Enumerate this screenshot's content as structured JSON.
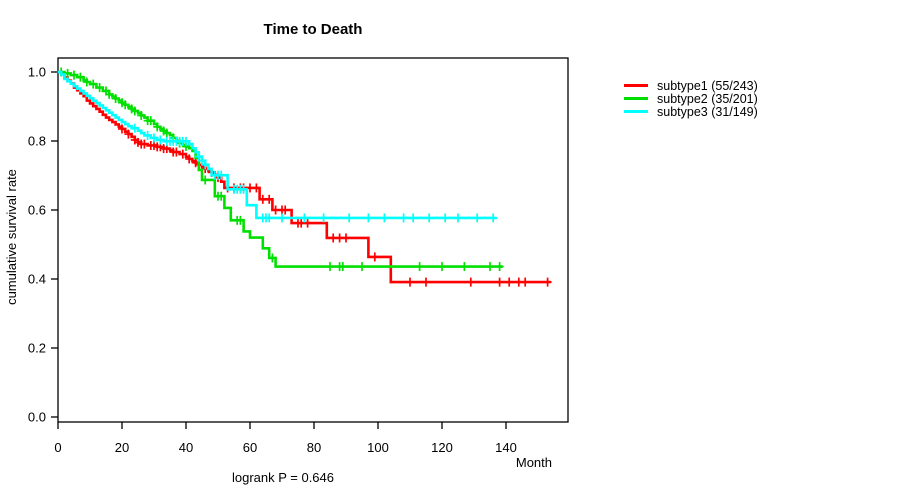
{
  "chart_data": {
    "type": "line",
    "subtype": "kaplan-meier-step-survival",
    "title": "Time to Death",
    "xlabel": "Month",
    "ylabel": "cumulative survival rate",
    "footnote": "logrank P = 0.646",
    "xlim": [
      0,
      160
    ],
    "ylim": [
      0,
      1
    ],
    "xticks": [
      0,
      20,
      40,
      60,
      80,
      100,
      120,
      140
    ],
    "yticks": [
      "0.0",
      "0.2",
      "0.4",
      "0.6",
      "0.8",
      "1.0"
    ],
    "grid": false,
    "legend_position": "right",
    "axis_color": "#000000",
    "series": [
      {
        "name": "subtype1 (55/243)",
        "color": "#FF0000",
        "end": 154,
        "steps": [
          [
            0,
            1.0
          ],
          [
            1,
            0.996
          ],
          [
            2,
            0.984
          ],
          [
            3,
            0.975
          ],
          [
            4,
            0.967
          ],
          [
            5,
            0.955
          ],
          [
            6,
            0.947
          ],
          [
            7,
            0.938
          ],
          [
            8,
            0.93
          ],
          [
            9,
            0.917
          ],
          [
            10,
            0.909
          ],
          [
            11,
            0.901
          ],
          [
            12,
            0.893
          ],
          [
            13,
            0.885
          ],
          [
            14,
            0.876
          ],
          [
            15,
            0.868
          ],
          [
            16,
            0.861
          ],
          [
            17,
            0.855
          ],
          [
            18,
            0.848
          ],
          [
            19,
            0.841
          ],
          [
            20,
            0.835
          ],
          [
            21,
            0.827
          ],
          [
            22,
            0.82
          ],
          [
            23,
            0.812
          ],
          [
            24,
            0.803
          ],
          [
            25,
            0.796
          ],
          [
            26,
            0.791
          ],
          [
            28,
            0.787
          ],
          [
            31,
            0.783
          ],
          [
            33,
            0.778
          ],
          [
            35,
            0.773
          ],
          [
            36,
            0.768
          ],
          [
            38,
            0.762
          ],
          [
            40,
            0.754
          ],
          [
            41,
            0.748
          ],
          [
            42,
            0.742
          ],
          [
            43,
            0.737
          ],
          [
            44,
            0.731
          ],
          [
            45,
            0.726
          ],
          [
            46,
            0.72
          ],
          [
            47,
            0.714
          ],
          [
            48,
            0.709
          ],
          [
            49,
            0.702
          ],
          [
            50,
            0.694
          ],
          [
            51,
            0.682
          ],
          [
            52,
            0.664
          ],
          [
            63,
            0.631
          ],
          [
            67,
            0.6
          ],
          [
            73,
            0.562
          ],
          [
            84,
            0.519
          ],
          [
            97,
            0.464
          ],
          [
            104,
            0.391
          ]
        ],
        "censor_months": [
          20,
          22,
          24,
          25,
          26,
          27,
          29,
          30,
          31,
          32,
          33,
          34,
          36,
          37,
          39,
          41,
          43,
          44,
          46,
          48,
          50,
          53,
          55,
          57,
          58,
          60,
          62,
          64,
          66,
          68,
          70,
          71,
          75,
          76,
          78,
          86,
          88,
          90,
          99,
          110,
          115,
          129,
          138,
          141,
          144,
          146,
          153
        ]
      },
      {
        "name": "subtype2 (35/201)",
        "color": "#00E000",
        "end": 139,
        "steps": [
          [
            0,
            1.0
          ],
          [
            2,
            0.996
          ],
          [
            4,
            0.991
          ],
          [
            6,
            0.985
          ],
          [
            8,
            0.976
          ],
          [
            9,
            0.971
          ],
          [
            10,
            0.965
          ],
          [
            12,
            0.955
          ],
          [
            14,
            0.945
          ],
          [
            16,
            0.935
          ],
          [
            17,
            0.929
          ],
          [
            18,
            0.923
          ],
          [
            19,
            0.917
          ],
          [
            20,
            0.911
          ],
          [
            21,
            0.905
          ],
          [
            22,
            0.899
          ],
          [
            23,
            0.893
          ],
          [
            24,
            0.887
          ],
          [
            25,
            0.881
          ],
          [
            26,
            0.874
          ],
          [
            27,
            0.868
          ],
          [
            28,
            0.859
          ],
          [
            30,
            0.849
          ],
          [
            31,
            0.841
          ],
          [
            32,
            0.835
          ],
          [
            33,
            0.829
          ],
          [
            34,
            0.823
          ],
          [
            35,
            0.817
          ],
          [
            36,
            0.809
          ],
          [
            37,
            0.801
          ],
          [
            38,
            0.794
          ],
          [
            39,
            0.789
          ],
          [
            40,
            0.784
          ],
          [
            41,
            0.779
          ],
          [
            42,
            0.771
          ],
          [
            43,
            0.751
          ],
          [
            44,
            0.716
          ],
          [
            45,
            0.687
          ],
          [
            49,
            0.64
          ],
          [
            52,
            0.606
          ],
          [
            54,
            0.57
          ],
          [
            58,
            0.538
          ],
          [
            60,
            0.52
          ],
          [
            64,
            0.489
          ],
          [
            66,
            0.461
          ],
          [
            68,
            0.436
          ]
        ],
        "censor_months": [
          1,
          3,
          5,
          7,
          9,
          11,
          13,
          15,
          16,
          18,
          20,
          21,
          23,
          24,
          26,
          28,
          29,
          31,
          33,
          34,
          36,
          38,
          40,
          46,
          50,
          51,
          56,
          57,
          67,
          85,
          88,
          89,
          95,
          113,
          120,
          127,
          135,
          138
        ]
      },
      {
        "name": "subtype3 (31/149)",
        "color": "#00FFFF",
        "end": 137,
        "steps": [
          [
            0,
            1.0
          ],
          [
            1,
            0.993
          ],
          [
            2,
            0.98
          ],
          [
            3,
            0.973
          ],
          [
            4,
            0.966
          ],
          [
            5,
            0.959
          ],
          [
            6,
            0.952
          ],
          [
            7,
            0.945
          ],
          [
            8,
            0.938
          ],
          [
            9,
            0.931
          ],
          [
            10,
            0.924
          ],
          [
            11,
            0.917
          ],
          [
            12,
            0.91
          ],
          [
            13,
            0.903
          ],
          [
            14,
            0.896
          ],
          [
            15,
            0.889
          ],
          [
            16,
            0.882
          ],
          [
            17,
            0.875
          ],
          [
            18,
            0.868
          ],
          [
            19,
            0.861
          ],
          [
            20,
            0.855
          ],
          [
            21,
            0.849
          ],
          [
            22,
            0.843
          ],
          [
            23,
            0.837
          ],
          [
            25,
            0.83
          ],
          [
            26,
            0.823
          ],
          [
            27,
            0.816
          ],
          [
            29,
            0.809
          ],
          [
            31,
            0.803
          ],
          [
            33,
            0.799
          ],
          [
            41,
            0.791
          ],
          [
            42,
            0.779
          ],
          [
            43,
            0.767
          ],
          [
            44,
            0.755
          ],
          [
            45,
            0.743
          ],
          [
            46,
            0.731
          ],
          [
            47,
            0.719
          ],
          [
            48,
            0.701
          ],
          [
            53,
            0.66
          ],
          [
            59,
            0.614
          ],
          [
            62,
            0.577
          ]
        ],
        "censor_months": [
          24,
          28,
          30,
          32,
          34,
          35,
          36,
          37,
          38,
          39,
          40,
          44,
          45,
          46,
          49,
          50,
          51,
          55,
          56,
          57,
          58,
          64,
          65,
          66,
          70,
          77,
          83,
          91,
          97,
          102,
          108,
          111,
          116,
          121,
          125,
          131,
          136
        ]
      }
    ]
  }
}
